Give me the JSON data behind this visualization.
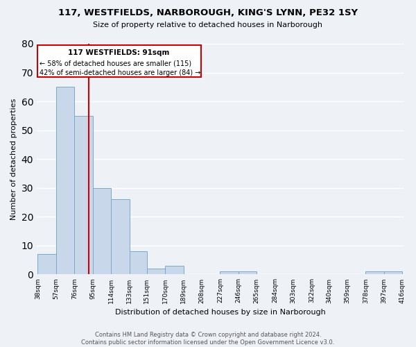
{
  "title": "117, WESTFIELDS, NARBOROUGH, KING'S LYNN, PE32 1SY",
  "subtitle": "Size of property relative to detached houses in Narborough",
  "xlabel": "Distribution of detached houses by size in Narborough",
  "ylabel": "Number of detached properties",
  "bar_color": "#c8d8ea",
  "bar_edge_color": "#7aaac8",
  "bins": [
    38,
    57,
    76,
    95,
    114,
    133,
    151,
    170,
    189,
    208,
    227,
    246,
    265,
    284,
    303,
    322,
    340,
    359,
    378,
    397,
    416
  ],
  "bin_labels": [
    "38sqm",
    "57sqm",
    "76sqm",
    "95sqm",
    "114sqm",
    "133sqm",
    "151sqm",
    "170sqm",
    "189sqm",
    "208sqm",
    "227sqm",
    "246sqm",
    "265sqm",
    "284sqm",
    "303sqm",
    "322sqm",
    "340sqm",
    "359sqm",
    "378sqm",
    "397sqm",
    "416sqm"
  ],
  "counts": [
    7,
    65,
    55,
    30,
    26,
    8,
    2,
    3,
    0,
    0,
    1,
    1,
    0,
    0,
    0,
    0,
    0,
    0,
    1,
    1
  ],
  "property_size": 91,
  "property_line_color": "#cc0000",
  "annotation_line1": "117 WESTFIELDS: 91sqm",
  "annotation_line2": "← 58% of detached houses are smaller (115)",
  "annotation_line3": "42% of semi-detached houses are larger (84) →",
  "annotation_box_color": "#ffffff",
  "annotation_box_edge": "#cc0000",
  "ylim": [
    0,
    80
  ],
  "yticks": [
    0,
    10,
    20,
    30,
    40,
    50,
    60,
    70,
    80
  ],
  "footer_line1": "Contains HM Land Registry data © Crown copyright and database right 2024.",
  "footer_line2": "Contains public sector information licensed under the Open Government Licence v3.0.",
  "background_color": "#eef2f7"
}
